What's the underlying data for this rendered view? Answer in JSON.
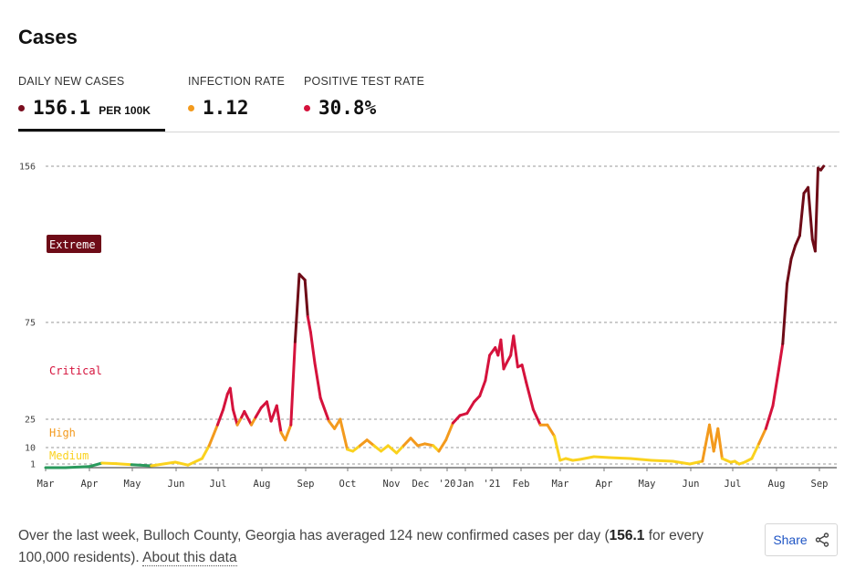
{
  "title": "Cases",
  "metrics": [
    {
      "label": "DAILY NEW CASES",
      "value": "156.1",
      "unit": "PER 100K",
      "dot_color": "#7a0e1f"
    },
    {
      "label": "INFECTION RATE",
      "value": "1.12",
      "unit": "",
      "dot_color": "#f39a1d"
    },
    {
      "label": "POSITIVE TEST RATE",
      "value": "30.8%",
      "unit": "",
      "dot_color": "#d5123c"
    }
  ],
  "footnote": {
    "prefix": "Over the last week, Bulloch County, Georgia has averaged 124 new confirmed cases per day (",
    "bold": "156.1",
    "suffix": " for every 100,000 residents). ",
    "link": "About this data"
  },
  "share_label": "Share",
  "icons": {
    "share": "share-icon"
  },
  "chart_data": {
    "type": "line",
    "y_ticks": [
      1,
      10,
      25,
      75,
      156
    ],
    "ylim": [
      0,
      156
    ],
    "x_tick_labels": [
      "Mar",
      "Apr",
      "May",
      "Jun",
      "Jul",
      "Aug",
      "Sep",
      "Oct",
      "Nov",
      "Dec",
      "'20",
      "Jan",
      "'21",
      "Feb",
      "Mar",
      "Apr",
      "May",
      "Jun",
      "Jul",
      "Aug",
      "Sep"
    ],
    "zones": [
      {
        "name": "Extreme",
        "color": "#6e0b17"
      },
      {
        "name": "Critical",
        "color": "#d5123c"
      },
      {
        "name": "High",
        "color": "#f39a1d"
      },
      {
        "name": "Medium",
        "color": "#fad21e"
      }
    ],
    "series": [
      {
        "x": [
          "2020-03-01",
          "2020-03-15",
          "2020-04-01",
          "2020-04-10",
          "2020-04-20",
          "2020-05-01",
          "2020-05-15",
          "2020-06-01",
          "2020-06-10",
          "2020-06-20",
          "2020-06-25",
          "2020-07-01",
          "2020-07-05",
          "2020-07-08",
          "2020-07-10",
          "2020-07-12",
          "2020-07-15",
          "2020-07-18",
          "2020-07-20",
          "2020-07-25",
          "2020-07-28",
          "2020-08-01",
          "2020-08-05",
          "2020-08-08",
          "2020-08-12",
          "2020-08-15",
          "2020-08-18",
          "2020-08-22",
          "2020-08-25",
          "2020-08-28",
          "2020-09-01",
          "2020-09-03",
          "2020-09-05",
          "2020-09-08",
          "2020-09-12",
          "2020-09-18",
          "2020-09-22",
          "2020-09-26",
          "2020-10-01",
          "2020-10-05",
          "2020-10-10",
          "2020-10-15",
          "2020-10-20",
          "2020-10-25",
          "2020-10-30",
          "2020-11-05",
          "2020-11-10",
          "2020-11-15",
          "2020-11-20",
          "2020-11-25",
          "2020-12-01",
          "2020-12-05",
          "2020-12-10",
          "2020-12-15",
          "2020-12-20",
          "2020-12-25",
          "2020-12-30",
          "2021-01-03",
          "2021-01-07",
          "2021-01-10",
          "2021-01-14",
          "2021-01-16",
          "2021-01-18",
          "2021-01-20",
          "2021-01-22",
          "2021-01-25",
          "2021-01-27",
          "2021-01-30",
          "2021-02-02",
          "2021-02-05",
          "2021-02-10",
          "2021-02-15",
          "2021-02-20",
          "2021-02-25",
          "2021-03-01",
          "2021-03-05",
          "2021-03-10",
          "2021-03-15",
          "2021-03-25",
          "2021-04-05",
          "2021-04-20",
          "2021-05-05",
          "2021-05-20",
          "2021-06-01",
          "2021-06-10",
          "2021-06-15",
          "2021-06-18",
          "2021-06-21",
          "2021-06-24",
          "2021-06-27",
          "2021-06-30",
          "2021-07-03",
          "2021-07-06",
          "2021-07-10",
          "2021-07-15",
          "2021-07-20",
          "2021-07-25",
          "2021-07-30",
          "2021-08-03",
          "2021-08-06",
          "2021-08-09",
          "2021-08-12",
          "2021-08-15",
          "2021-08-18",
          "2021-08-21",
          "2021-08-24",
          "2021-08-27",
          "2021-08-29",
          "2021-08-31",
          "2021-09-02",
          "2021-09-04"
        ],
        "values": [
          0,
          0,
          0.3,
          1.5,
          1.2,
          0.8,
          0.5,
          2,
          0.7,
          4,
          11,
          22,
          30,
          38,
          41,
          30,
          22,
          26,
          29,
          22,
          26,
          31,
          34,
          24,
          32,
          18,
          14,
          22,
          65,
          100,
          97,
          78,
          70,
          54,
          36,
          24,
          20,
          25,
          9,
          8,
          11,
          14,
          11,
          8,
          11,
          7,
          11,
          15,
          11,
          12,
          11,
          8,
          14,
          23,
          27,
          28,
          34,
          37,
          45,
          58,
          62,
          58,
          66,
          51,
          54,
          58,
          68,
          52,
          53,
          44,
          30,
          22,
          22,
          16,
          3,
          4,
          3,
          3.5,
          5,
          4.5,
          4,
          3,
          2.5,
          1,
          2.5,
          22,
          8,
          20,
          4,
          3,
          2,
          2.5,
          1,
          2,
          4,
          12,
          20,
          32,
          50,
          64,
          95,
          108,
          115,
          120,
          142,
          145,
          118,
          112,
          155,
          154,
          156
        ]
      }
    ]
  }
}
